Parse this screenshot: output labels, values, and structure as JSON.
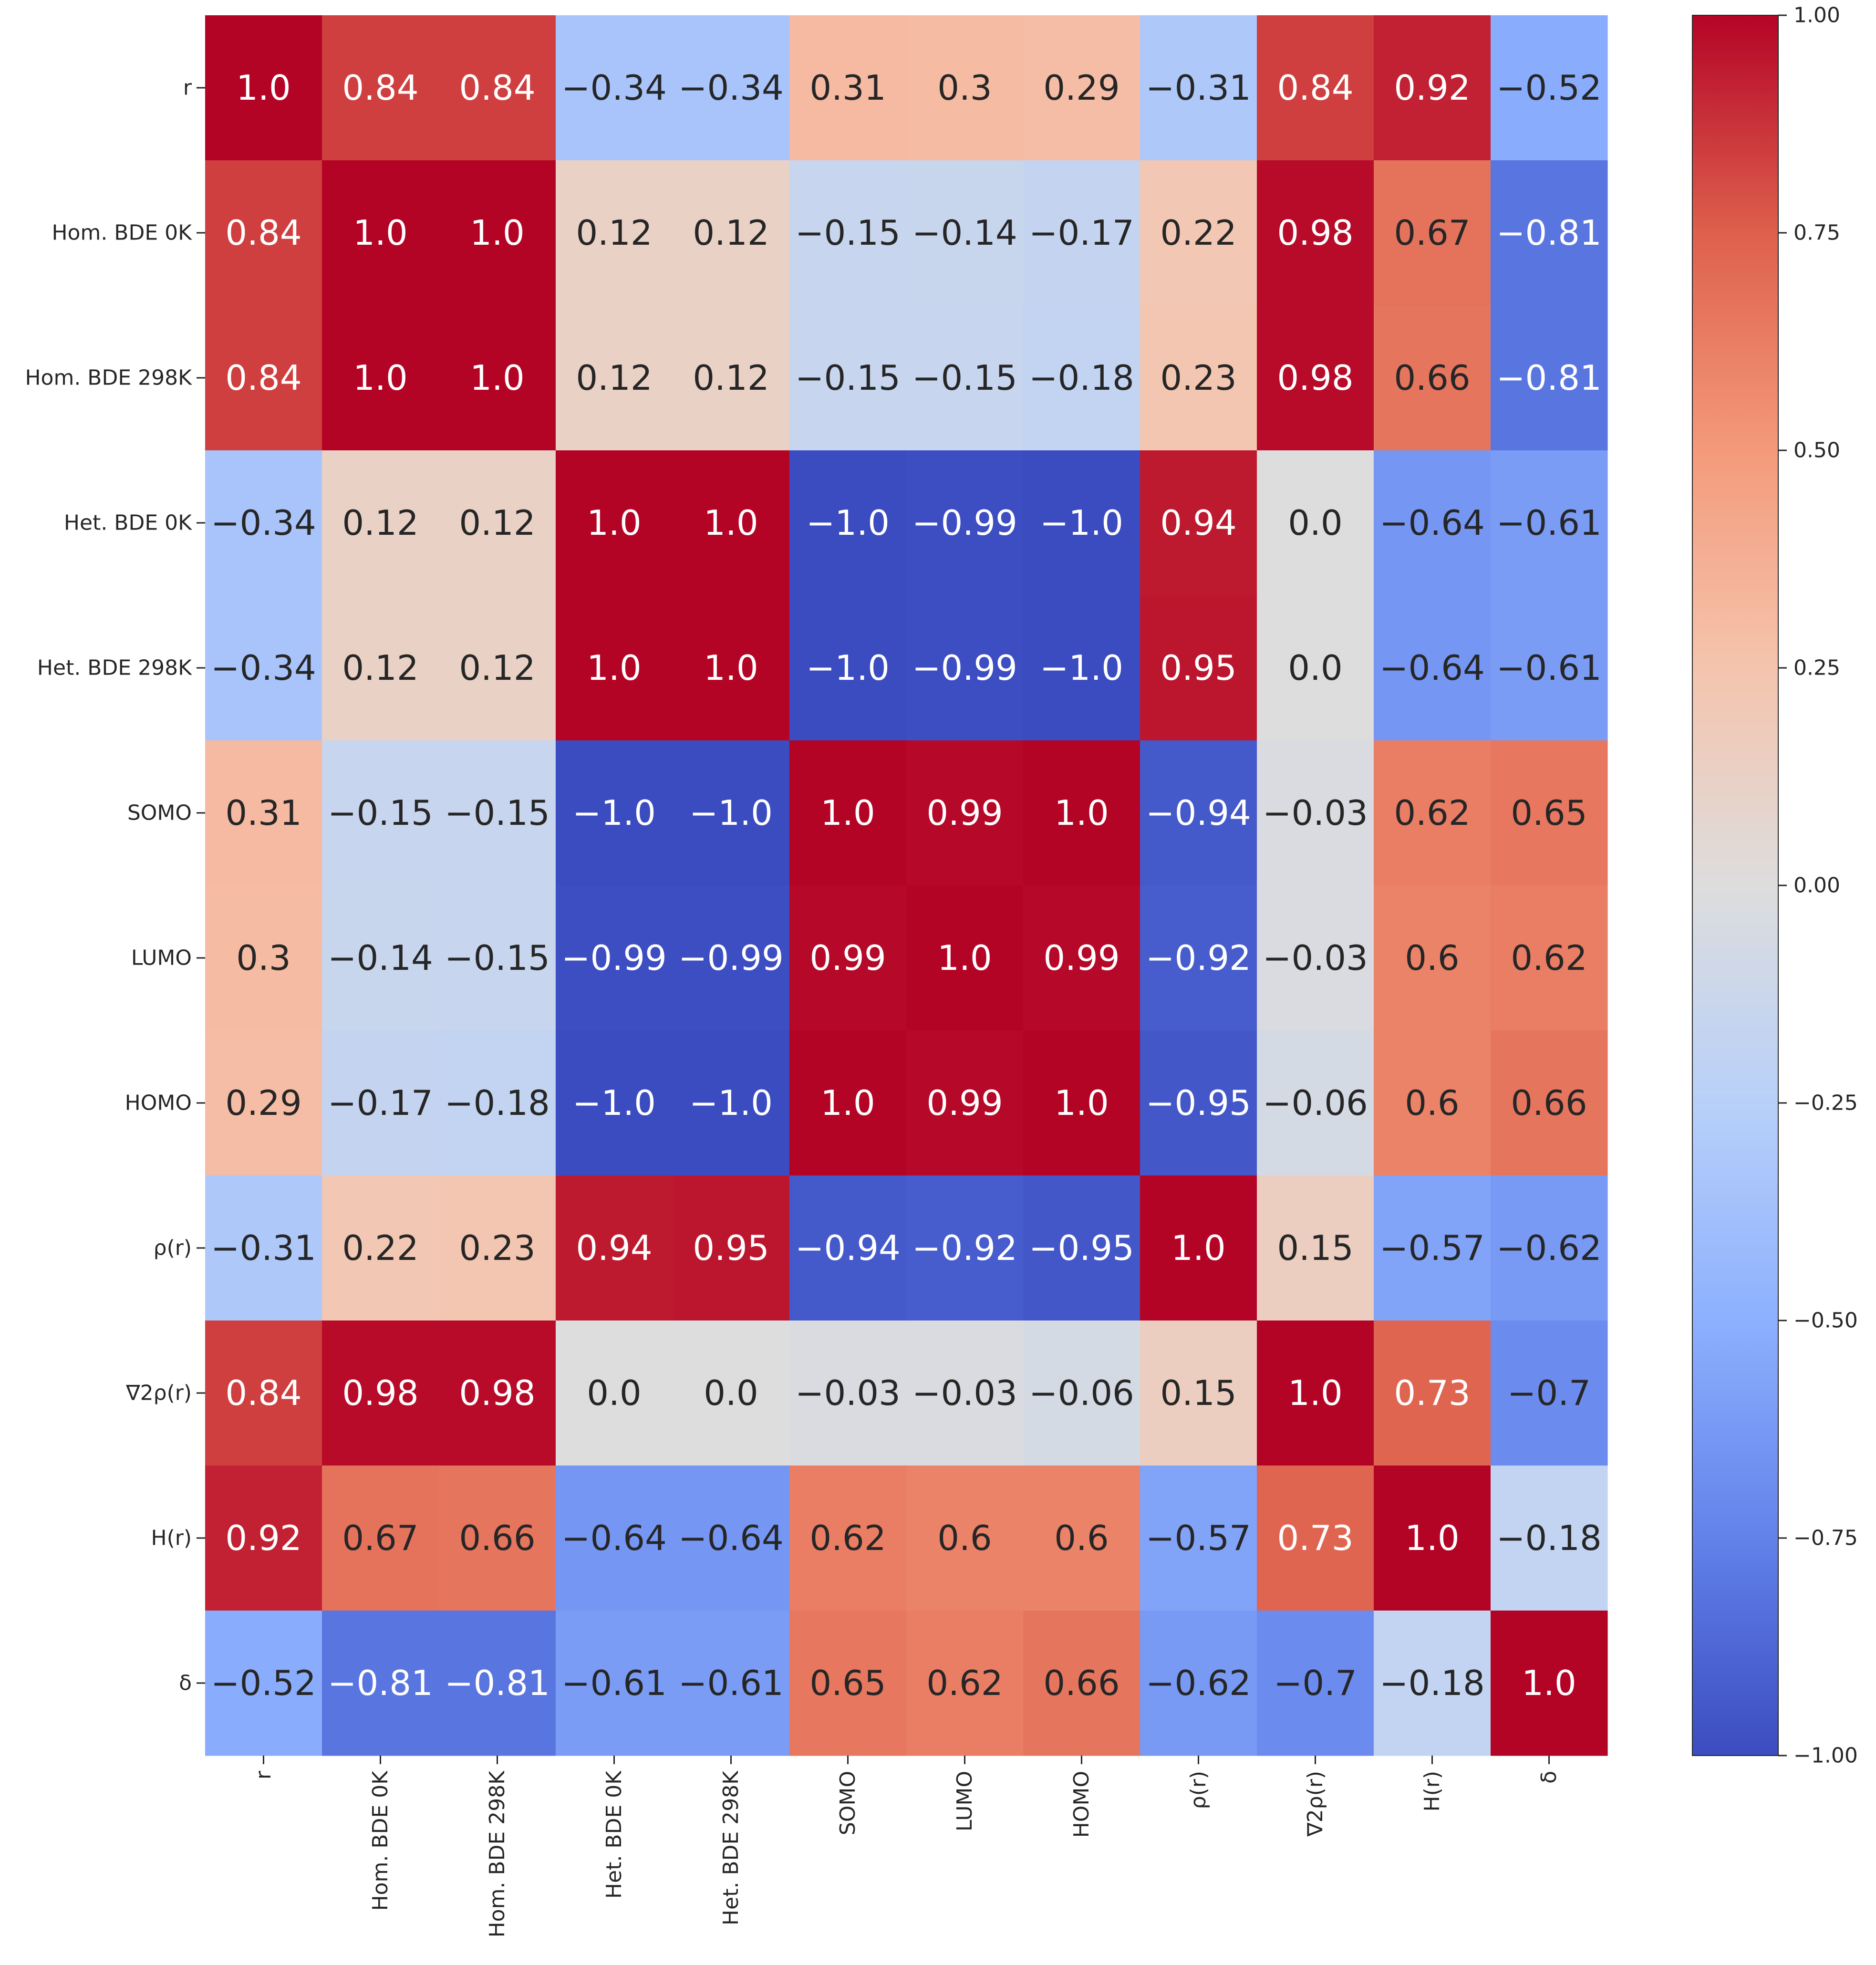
{
  "chart_data": {
    "type": "heatmap",
    "title": "",
    "xlabel": "",
    "ylabel": "",
    "labels": [
      "r",
      "Hom. BDE 0K",
      "Hom. BDE 298K",
      "Het. BDE 0K",
      "Het. BDE 298K",
      "SOMO",
      "LUMO",
      "HOMO",
      "ρ(r)",
      "∇2ρ(r)",
      "H(r)",
      "δ"
    ],
    "values": [
      [
        1.0,
        0.84,
        0.84,
        -0.34,
        -0.34,
        0.31,
        0.3,
        0.29,
        -0.31,
        0.84,
        0.92,
        -0.52
      ],
      [
        0.84,
        1.0,
        1.0,
        0.12,
        0.12,
        -0.15,
        -0.14,
        -0.17,
        0.22,
        0.98,
        0.67,
        -0.81
      ],
      [
        0.84,
        1.0,
        1.0,
        0.12,
        0.12,
        -0.15,
        -0.15,
        -0.18,
        0.23,
        0.98,
        0.66,
        -0.81
      ],
      [
        -0.34,
        0.12,
        0.12,
        1.0,
        1.0,
        -1.0,
        -0.99,
        -1.0,
        0.94,
        0.0,
        -0.64,
        -0.61
      ],
      [
        -0.34,
        0.12,
        0.12,
        1.0,
        1.0,
        -1.0,
        -0.99,
        -1.0,
        0.95,
        0.0,
        -0.64,
        -0.61
      ],
      [
        0.31,
        -0.15,
        -0.15,
        -1.0,
        -1.0,
        1.0,
        0.99,
        1.0,
        -0.94,
        -0.03,
        0.62,
        0.65
      ],
      [
        0.3,
        -0.14,
        -0.15,
        -0.99,
        -0.99,
        0.99,
        1.0,
        0.99,
        -0.92,
        -0.03,
        0.6,
        0.62
      ],
      [
        0.29,
        -0.17,
        -0.18,
        -1.0,
        -1.0,
        1.0,
        0.99,
        1.0,
        -0.95,
        -0.06,
        0.6,
        0.66
      ],
      [
        -0.31,
        0.22,
        0.23,
        0.94,
        0.95,
        -0.94,
        -0.92,
        -0.95,
        1.0,
        0.15,
        -0.57,
        -0.62
      ],
      [
        0.84,
        0.98,
        0.98,
        0.0,
        0.0,
        -0.03,
        -0.03,
        -0.06,
        0.15,
        1.0,
        0.73,
        -0.7
      ],
      [
        0.92,
        0.67,
        0.66,
        -0.64,
        -0.64,
        0.62,
        0.6,
        0.6,
        -0.57,
        0.73,
        1.0,
        -0.18
      ],
      [
        -0.52,
        -0.81,
        -0.81,
        -0.61,
        -0.61,
        0.65,
        0.62,
        0.66,
        -0.62,
        -0.7,
        -0.18,
        1.0
      ]
    ],
    "colormap": "coolwarm",
    "vmin": -1.0,
    "vmax": 1.0,
    "colorbar": {
      "ticks": [
        1.0,
        0.75,
        0.5,
        0.25,
        0.0,
        -0.25,
        -0.5,
        -0.75,
        -1.0
      ],
      "tick_labels": [
        "1.00",
        "0.75",
        "0.50",
        "0.25",
        "0.00",
        "−0.25",
        "−0.50",
        "−0.75",
        "−1.00"
      ],
      "position": "right"
    },
    "annotations": "cell values shown",
    "grid": false,
    "legend": "none"
  }
}
